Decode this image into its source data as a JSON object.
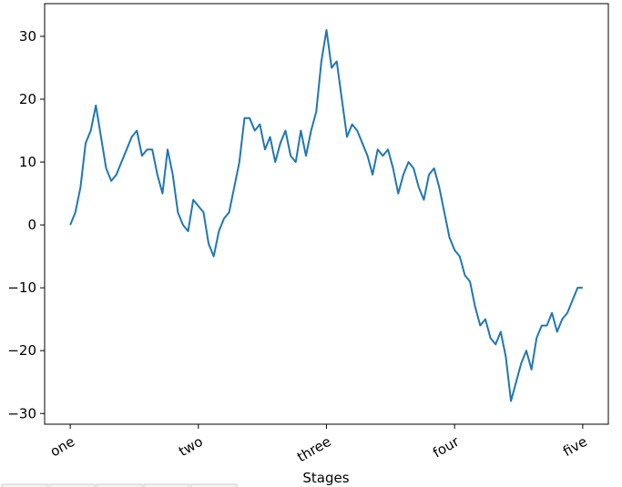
{
  "chart_data": {
    "type": "line",
    "xlabel": "Stages",
    "x": [
      0,
      10,
      20,
      30,
      40,
      50,
      60,
      70,
      80,
      90,
      100,
      110,
      120,
      130,
      140,
      150,
      160,
      170,
      180,
      190,
      200,
      210,
      220,
      230,
      240,
      250,
      260,
      270,
      280,
      290,
      300,
      310,
      320,
      330,
      340,
      350,
      360,
      370,
      380,
      390,
      400,
      410,
      420,
      430,
      440,
      450,
      460,
      470,
      480,
      490,
      500,
      510,
      520,
      530,
      540,
      550,
      560,
      570,
      580,
      590,
      600,
      610,
      620,
      630,
      640,
      650,
      660,
      670,
      680,
      690,
      700,
      710,
      720,
      730,
      740,
      750,
      760,
      770,
      780,
      790,
      800,
      810,
      820,
      830,
      840,
      850,
      860,
      870,
      880,
      890,
      900,
      910,
      920,
      930,
      940,
      950,
      960,
      970,
      980,
      990,
      1000
    ],
    "series": [
      {
        "color": "#1f77b4",
        "values": [
          0,
          2,
          6,
          13,
          15,
          19,
          14,
          9,
          7,
          8,
          10,
          12,
          14,
          15,
          11,
          12,
          12,
          8,
          5,
          12,
          8,
          2,
          0,
          -1,
          4,
          3,
          2,
          -3,
          -5,
          -1,
          1,
          2,
          6,
          10,
          17,
          17,
          15,
          16,
          12,
          14,
          10,
          13,
          15,
          11,
          10,
          15,
          11,
          15,
          18,
          26,
          31,
          25,
          26,
          20,
          14,
          16,
          15,
          13,
          11,
          8,
          12,
          11,
          12,
          9,
          5,
          8,
          10,
          9,
          6,
          4,
          8,
          9,
          6,
          2,
          -2,
          -4,
          -5,
          -8,
          -9,
          -13,
          -16,
          -15,
          -18,
          -19,
          -17,
          -21,
          -28,
          -25,
          -22,
          -20,
          -23,
          -18,
          -16,
          -16,
          -14,
          -17,
          -15,
          -14,
          -12,
          -10,
          -10
        ]
      }
    ],
    "xlim": [
      -50,
      1050
    ],
    "ylim": [
      -31.7,
      35.2
    ],
    "xticks": [
      {
        "value": 0,
        "label": "one"
      },
      {
        "value": 250,
        "label": "two"
      },
      {
        "value": 500,
        "label": "three"
      },
      {
        "value": 750,
        "label": "four"
      },
      {
        "value": 1000,
        "label": "five"
      }
    ],
    "yticks": [
      {
        "value": -30,
        "label": "−30"
      },
      {
        "value": -20,
        "label": "−20"
      },
      {
        "value": -10,
        "label": "−10"
      },
      0,
      10,
      20,
      30
    ]
  }
}
